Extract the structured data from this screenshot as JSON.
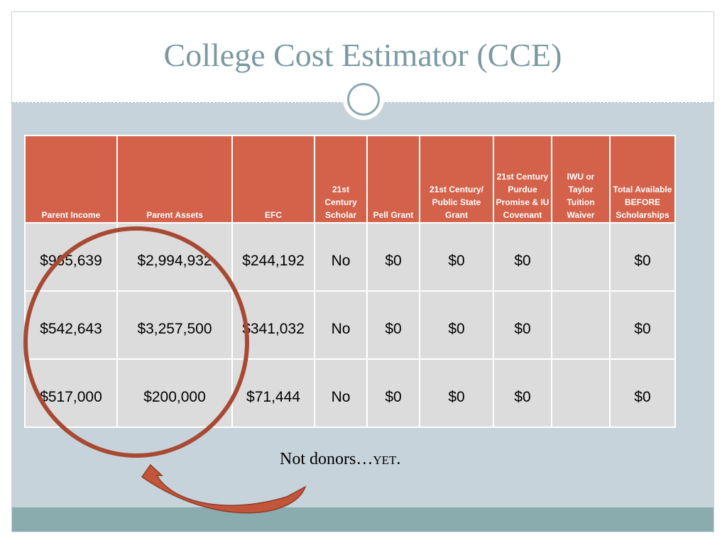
{
  "title": "College Cost Estimator (CCE)",
  "table": {
    "headers": [
      "Parent Income",
      "Parent Assets",
      "EFC",
      "21st Century Scholar",
      "Pell Grant",
      "21st Century/ Public State Grant",
      "21st Century Purdue Promise & IU Covenant",
      "IWU or Taylor Tuition Waiver",
      "Total Available BEFORE Scholarships"
    ],
    "rows": [
      [
        "$965,639",
        "$2,994,932",
        "$244,192",
        "No",
        "$0",
        "$0",
        "$0",
        "",
        "$0"
      ],
      [
        "$542,643",
        "$3,257,500",
        "$341,032",
        "No",
        "$0",
        "$0",
        "$0",
        "",
        "$0"
      ],
      [
        "$517,000",
        "$200,000",
        "$71,444",
        "No",
        "$0",
        "$0",
        "$0",
        "",
        "$0"
      ]
    ]
  },
  "callout": {
    "text": "Not donors…",
    "emphasis": "YET",
    "end": "."
  },
  "colors": {
    "header_fill": "#d4614a",
    "cell_fill": "#dcdcdc",
    "title": "#7a9aa0",
    "background": "#c7d3da",
    "footer_band": "#8aacae",
    "annotation": "#a84a33"
  },
  "icons": {
    "ornament": "circle-ornament-icon",
    "circle": "circle-highlight",
    "arrow": "curved-arrow-icon"
  }
}
